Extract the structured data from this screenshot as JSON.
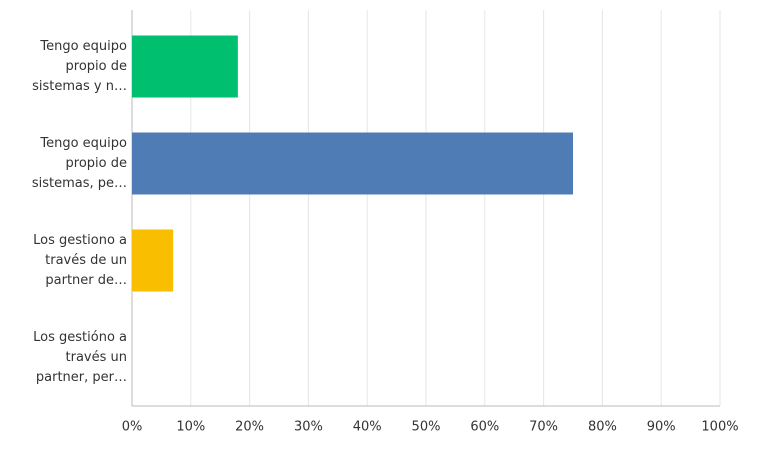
{
  "chart_data": {
    "type": "bar",
    "orientation": "horizontal",
    "categories": [
      "Tengo equipo propio de sistemas y n…",
      "Tengo equipo propio de sistemas, pe…",
      "Los gestiono a través de un partner de…",
      "Los gestióno a través un partner, per…"
    ],
    "values": [
      18,
      75,
      7,
      0
    ],
    "colors": [
      "#00bf6f",
      "#507cb6",
      "#f9be00",
      "#6bc8cd"
    ],
    "xlim": [
      0,
      100
    ],
    "xticks": [
      {
        "value": 0,
        "label": "0%"
      },
      {
        "value": 10,
        "label": "10%"
      },
      {
        "value": 20,
        "label": "20%"
      },
      {
        "value": 30,
        "label": "30%"
      },
      {
        "value": 40,
        "label": "40%"
      },
      {
        "value": 50,
        "label": "50%"
      },
      {
        "value": 60,
        "label": "60%"
      },
      {
        "value": 70,
        "label": "70%"
      },
      {
        "value": 80,
        "label": "80%"
      },
      {
        "value": 90,
        "label": "90%"
      },
      {
        "value": 100,
        "label": "100%"
      }
    ],
    "grid": true
  }
}
